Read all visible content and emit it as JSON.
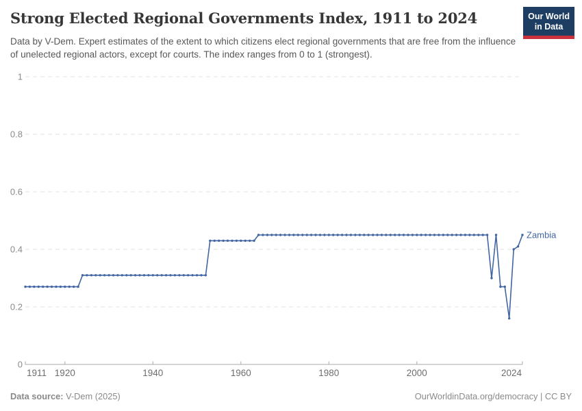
{
  "header": {
    "title": "Strong Elected Regional Governments Index, 1911 to 2024",
    "subtitle": "Data by V-Dem. Expert estimates of the extent to which citizens elect regional governments that are free from the influence of unelected regional actors, except for courts. The index ranges from 0 to 1 (strongest)."
  },
  "logo": {
    "line1": "Our World",
    "line2": "in Data",
    "bg_color": "#1d3d63",
    "stripe_color": "#c9323c"
  },
  "chart_data": {
    "type": "line",
    "title": "Strong Elected Regional Governments Index, 1911 to 2024",
    "xlabel": "",
    "ylabel": "",
    "xlim": [
      1911,
      2024
    ],
    "ylim": [
      0,
      1
    ],
    "x_ticks": [
      1911,
      1920,
      1940,
      1960,
      1980,
      2000,
      2024
    ],
    "y_ticks": [
      0,
      0.2,
      0.4,
      0.6,
      0.8,
      1
    ],
    "grid": "horizontal-dashed",
    "legend_position": "end-of-line-label",
    "markers": "point-per-year",
    "series": [
      {
        "name": "Zambia",
        "color": "#4265a3",
        "segments": [
          {
            "start": 1911,
            "end": 1923,
            "value": 0.27
          },
          {
            "start": 1924,
            "end": 1952,
            "value": 0.31
          },
          {
            "start": 1953,
            "end": 1963,
            "value": 0.43
          },
          {
            "start": 1964,
            "end": 2016,
            "value": 0.45
          },
          {
            "start": 2017,
            "end": 2017,
            "value": 0.3
          },
          {
            "start": 2018,
            "end": 2018,
            "value": 0.45
          },
          {
            "start": 2019,
            "end": 2020,
            "value": 0.27
          },
          {
            "start": 2021,
            "end": 2021,
            "value": 0.16
          },
          {
            "start": 2022,
            "end": 2022,
            "value": 0.4
          },
          {
            "start": 2023,
            "end": 2023,
            "value": 0.41
          },
          {
            "start": 2024,
            "end": 2024,
            "value": 0.45
          }
        ]
      }
    ]
  },
  "axis_colors": {
    "gridline": "#e2e2e2",
    "axis_line": "#a9a9a9",
    "y_tick_label": "#8a8a8a",
    "x_tick_label": "#6d6d6d"
  },
  "footer": {
    "source_label": "Data source:",
    "source_value": " V-Dem (2025)",
    "attribution": "OurWorldinData.org/democracy | CC BY"
  }
}
